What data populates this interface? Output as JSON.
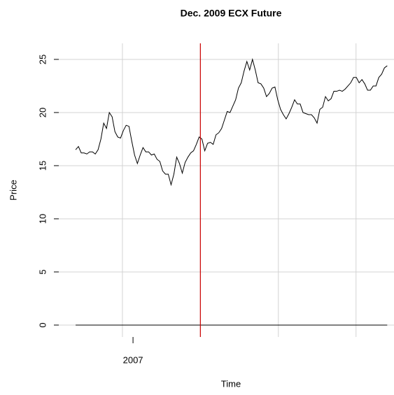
{
  "chart_data": {
    "type": "line",
    "title": "Dec. 2009 ECX Future",
    "xlabel": "Time",
    "ylabel": "Price",
    "x": [
      2006.816,
      2006.825,
      2006.834,
      2006.843,
      2006.852,
      2006.861,
      2006.87,
      2006.879,
      2006.888,
      2006.897,
      2006.906,
      2006.915,
      2006.924,
      2006.933,
      2006.942,
      2006.951,
      2006.96,
      2006.969,
      2006.978,
      2006.987,
      2006.996,
      2007.005,
      2007.014,
      2007.023,
      2007.032,
      2007.041,
      2007.05,
      2007.059,
      2007.068,
      2007.077,
      2007.086,
      2007.095,
      2007.104,
      2007.113,
      2007.122,
      2007.131,
      2007.14,
      2007.149,
      2007.158,
      2007.167,
      2007.176,
      2007.185,
      2007.194,
      2007.203,
      2007.212,
      2007.221,
      2007.23,
      2007.239,
      2007.248,
      2007.257,
      2007.266,
      2007.275,
      2007.284,
      2007.293,
      2007.302,
      2007.311,
      2007.32,
      2007.329,
      2007.338,
      2007.347,
      2007.356,
      2007.365,
      2007.374,
      2007.383,
      2007.392,
      2007.401,
      2007.41,
      2007.419,
      2007.428,
      2007.437,
      2007.446,
      2007.455,
      2007.464,
      2007.473,
      2007.482,
      2007.491,
      2007.5,
      2007.509,
      2007.518,
      2007.527,
      2007.536,
      2007.545,
      2007.554,
      2007.563,
      2007.572,
      2007.581,
      2007.59,
      2007.599,
      2007.608,
      2007.617,
      2007.626,
      2007.635,
      2007.644,
      2007.653,
      2007.662,
      2007.671,
      2007.68,
      2007.689,
      2007.698,
      2007.707,
      2007.716,
      2007.725,
      2007.734,
      2007.743,
      2007.752,
      2007.761,
      2007.77,
      2007.779,
      2007.788,
      2007.797,
      2007.806,
      2007.815
    ],
    "series": [
      {
        "color": "#000000",
        "values": [
          16.5,
          16.8,
          16.2,
          16.2,
          16.1,
          16.3,
          16.3,
          16.1,
          16.5,
          17.5,
          19.0,
          18.5,
          20.0,
          19.6,
          18.2,
          17.7,
          17.6,
          18.3,
          18.8,
          18.7,
          17.3,
          16.0,
          15.2,
          16.0,
          16.7,
          16.3,
          16.3,
          16.0,
          16.1,
          15.6,
          15.4,
          14.5,
          14.2,
          14.2,
          13.2,
          14.2,
          15.8,
          15.2,
          14.3,
          15.3,
          15.8,
          16.2,
          16.4,
          17.0,
          17.7,
          17.5,
          16.4,
          17.1,
          17.2,
          17.0,
          17.9,
          18.1,
          18.5,
          19.3,
          20.1,
          20.0,
          20.6,
          21.2,
          22.3,
          22.8,
          23.9,
          24.8,
          24.0,
          25.0,
          24.0,
          22.8,
          22.7,
          22.3,
          21.5,
          21.8,
          22.3,
          22.4,
          21.2,
          20.3,
          19.8,
          19.4,
          19.9,
          20.5,
          21.2,
          20.8,
          20.8,
          20.0,
          19.9,
          19.8,
          19.8,
          19.5,
          19.0,
          20.3,
          20.5,
          21.5,
          21.1,
          21.3,
          22.0,
          22.0,
          22.1,
          22.0,
          22.2,
          22.5,
          22.8,
          23.3,
          23.3,
          22.8,
          23.1,
          22.7,
          22.1,
          22.1,
          22.5,
          22.5,
          23.3,
          23.6,
          24.2,
          24.4
        ]
      }
    ],
    "xlim": [
      2006.762,
      2007.83
    ],
    "xticks": [
      {
        "value": 2007,
        "label": "2007"
      }
    ],
    "xgrid": [
      2006.966,
      2007.216,
      2007.466,
      2007.715
    ],
    "vline": {
      "value": 2007.216,
      "color": "#cc0000"
    },
    "hline": 0,
    "ylim": [
      -1.12,
      26.51
    ],
    "yticks": [
      0,
      5,
      10,
      15,
      20,
      25
    ],
    "grid": true
  }
}
